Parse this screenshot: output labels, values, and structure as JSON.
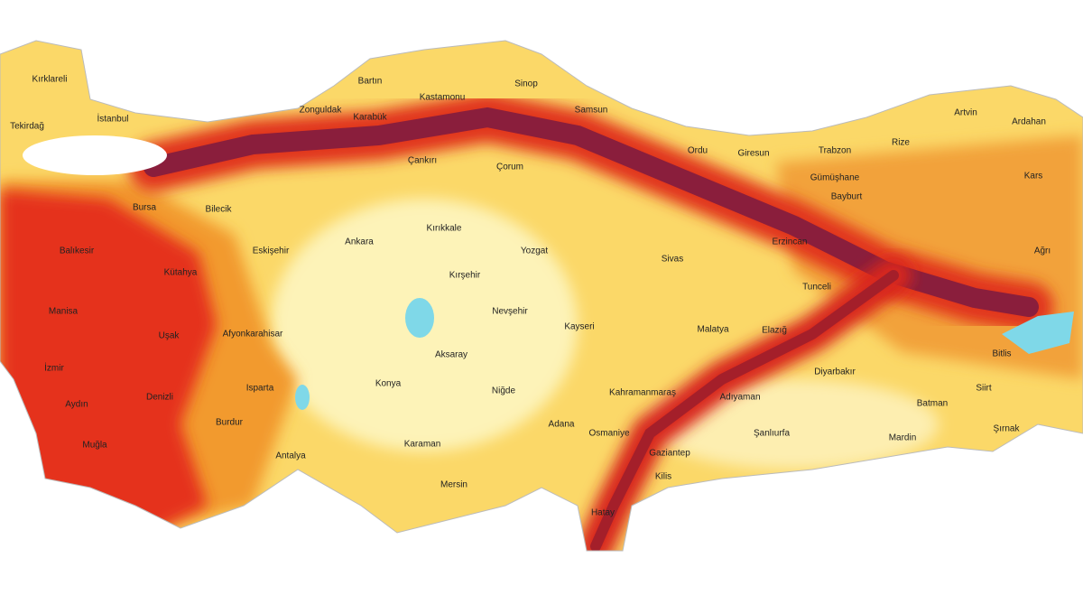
{
  "map": {
    "provinces": [
      "Kırklareli",
      "Tekirdağ",
      "İstanbul",
      "Bartın",
      "Kastamonu",
      "Sinop",
      "Zonguldak",
      "Karabük",
      "Samsun",
      "Çankırı",
      "Çorum",
      "Ordu",
      "Giresun",
      "Trabzon",
      "Rize",
      "Artvin",
      "Ardahan",
      "Gümüşhane",
      "Kars",
      "Bayburt",
      "Bilecik",
      "Bursa",
      "Eskişehir",
      "Ankara",
      "Kırıkkale",
      "Yozgat",
      "Sivas",
      "Erzincan",
      "Ağrı",
      "Kırşehir",
      "Nevşehir",
      "Kayseri",
      "Tunceli",
      "Malatya",
      "Elazığ",
      "Balıkesir",
      "Kütahya",
      "Manisa",
      "Uşak",
      "Afyonkarahisar",
      "Aksaray",
      "Konya",
      "Niğde",
      "Kahramanmaraş",
      "Adıyaman",
      "Diyarbakır",
      "Bitlis",
      "Siirt",
      "Batman",
      "İzmir",
      "Aydın",
      "Denizli",
      "Isparta",
      "Burdur",
      "Muğla",
      "Antalya",
      "Karaman",
      "Adana",
      "Osmaniye",
      "Gaziantep",
      "Şanlıurfa",
      "Mardin",
      "Şırnak",
      "Kilis",
      "Mersin",
      "Hatay"
    ]
  }
}
